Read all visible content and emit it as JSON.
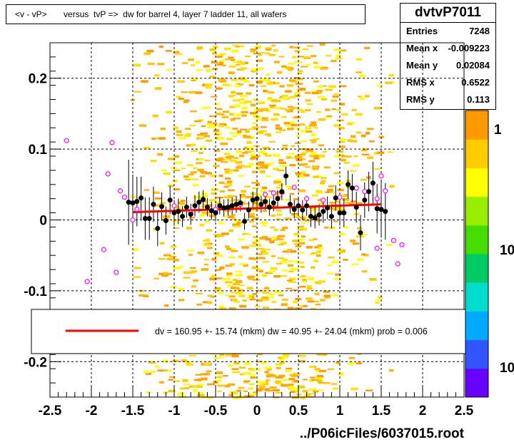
{
  "title": "<v - vP>       versus  tvP =>  dw for barrel 4, layer 7 ladder 11, all wafers",
  "stats": {
    "name": "dvtvP7011",
    "rows": [
      {
        "label": "Entries",
        "value": "7248"
      },
      {
        "label": "Mean x",
        "value": "-0.009223"
      },
      {
        "label": "Mean y",
        "value": "0.02084"
      },
      {
        "label": "RMS x",
        "value": "0.6522"
      },
      {
        "label": "RMS y",
        "value": "0.113"
      }
    ]
  },
  "footer": "../P06icFiles/6037015.root",
  "legend": {
    "text": "dv =  160.95 +- 15.74 (mkm) dw =   40.95 +- 24.04 (mkm) prob = 0.006",
    "line_color": "#ff0000"
  },
  "colors": {
    "profile_marker": "#000000",
    "open_marker": "#ff00ff",
    "fit_line": "#ff0000"
  },
  "palette_labels": [
    "1",
    "10",
    "10"
  ],
  "chart_data": {
    "type": "scatter",
    "xlim": [
      -2.5,
      2.5
    ],
    "ylim": [
      -0.25,
      0.25
    ],
    "x_ticks": [
      -2.5,
      -2,
      -1.5,
      -1,
      -0.5,
      0,
      0.5,
      1,
      1.5,
      2,
      2.5
    ],
    "x_tick_labels": [
      "-2.5",
      "-2",
      "-1.5",
      "-1",
      "-0.5",
      "0",
      "0.5",
      "1",
      "1.5",
      "2",
      "2.5"
    ],
    "y_ticks": [
      -0.2,
      -0.1,
      0,
      0.1,
      0.2
    ],
    "y_tick_labels": [
      "-0.2",
      "-0.1",
      "0",
      "0.1",
      "0.2"
    ],
    "grid": true,
    "fit_line": {
      "x": [
        -1.5,
        1.5
      ],
      "y": [
        0.011,
        0.022
      ]
    },
    "profile": [
      {
        "x": -1.55,
        "y": 0.025,
        "e": 0.06
      },
      {
        "x": -1.5,
        "y": 0.024,
        "e": 0.04
      },
      {
        "x": -1.45,
        "y": 0.026,
        "e": 0.035
      },
      {
        "x": -1.4,
        "y": 0.031,
        "e": 0.03
      },
      {
        "x": -1.35,
        "y": 0.002,
        "e": 0.03
      },
      {
        "x": -1.3,
        "y": 0.002,
        "e": 0.03
      },
      {
        "x": -1.25,
        "y": 0.022,
        "e": 0.025
      },
      {
        "x": -1.2,
        "y": -0.012,
        "e": 0.025
      },
      {
        "x": -1.15,
        "y": 0.019,
        "e": 0.02
      },
      {
        "x": -1.1,
        "y": -0.001,
        "e": 0.02
      },
      {
        "x": -1.05,
        "y": 0.028,
        "e": 0.02
      },
      {
        "x": -1.0,
        "y": 0.01,
        "e": 0.018
      },
      {
        "x": -0.95,
        "y": 0.012,
        "e": 0.018
      },
      {
        "x": -0.9,
        "y": 0.005,
        "e": 0.015
      },
      {
        "x": -0.85,
        "y": 0.018,
        "e": 0.015
      },
      {
        "x": -0.8,
        "y": 0.008,
        "e": 0.015
      },
      {
        "x": -0.75,
        "y": 0.02,
        "e": 0.015
      },
      {
        "x": -0.7,
        "y": 0.025,
        "e": 0.015
      },
      {
        "x": -0.65,
        "y": 0.029,
        "e": 0.013
      },
      {
        "x": -0.6,
        "y": 0.018,
        "e": 0.013
      },
      {
        "x": -0.55,
        "y": 0.013,
        "e": 0.013
      },
      {
        "x": -0.5,
        "y": 0.01,
        "e": 0.012
      },
      {
        "x": -0.45,
        "y": 0.02,
        "e": 0.012
      },
      {
        "x": -0.4,
        "y": 0.017,
        "e": 0.012
      },
      {
        "x": -0.35,
        "y": 0.018,
        "e": 0.012
      },
      {
        "x": -0.3,
        "y": 0.02,
        "e": 0.012
      },
      {
        "x": -0.25,
        "y": 0.022,
        "e": 0.012
      },
      {
        "x": -0.2,
        "y": 0.024,
        "e": 0.012
      },
      {
        "x": -0.15,
        "y": -0.002,
        "e": 0.012
      },
      {
        "x": -0.1,
        "y": 0.014,
        "e": 0.012
      },
      {
        "x": -0.05,
        "y": 0.028,
        "e": 0.012
      },
      {
        "x": 0.0,
        "y": 0.03,
        "e": 0.012
      },
      {
        "x": 0.05,
        "y": 0.022,
        "e": 0.012
      },
      {
        "x": 0.1,
        "y": 0.026,
        "e": 0.012
      },
      {
        "x": 0.15,
        "y": 0.018,
        "e": 0.012
      },
      {
        "x": 0.2,
        "y": 0.024,
        "e": 0.012
      },
      {
        "x": 0.25,
        "y": 0.03,
        "e": 0.012
      },
      {
        "x": 0.3,
        "y": 0.04,
        "e": 0.012
      },
      {
        "x": 0.35,
        "y": 0.062,
        "e": 0.013
      },
      {
        "x": 0.4,
        "y": 0.022,
        "e": 0.013
      },
      {
        "x": 0.45,
        "y": 0.015,
        "e": 0.013
      },
      {
        "x": 0.5,
        "y": 0.02,
        "e": 0.013
      },
      {
        "x": 0.55,
        "y": 0.014,
        "e": 0.014
      },
      {
        "x": 0.6,
        "y": 0.02,
        "e": 0.014
      },
      {
        "x": 0.65,
        "y": 0.005,
        "e": 0.015
      },
      {
        "x": 0.7,
        "y": 0.003,
        "e": 0.015
      },
      {
        "x": 0.75,
        "y": 0.007,
        "e": 0.015
      },
      {
        "x": 0.8,
        "y": 0.012,
        "e": 0.016
      },
      {
        "x": 0.85,
        "y": 0.017,
        "e": 0.016
      },
      {
        "x": 0.9,
        "y": 0.005,
        "e": 0.017
      },
      {
        "x": 0.95,
        "y": 0.031,
        "e": 0.018
      },
      {
        "x": 1.0,
        "y": 0.01,
        "e": 0.018
      },
      {
        "x": 1.05,
        "y": 0.01,
        "e": 0.02
      },
      {
        "x": 1.1,
        "y": 0.05,
        "e": 0.02
      },
      {
        "x": 1.15,
        "y": 0.045,
        "e": 0.02
      },
      {
        "x": 1.2,
        "y": 0.018,
        "e": 0.022
      },
      {
        "x": 1.25,
        "y": -0.018,
        "e": 0.025
      },
      {
        "x": 1.3,
        "y": 0.028,
        "e": 0.025
      },
      {
        "x": 1.35,
        "y": 0.04,
        "e": 0.028
      },
      {
        "x": 1.4,
        "y": 0.052,
        "e": 0.03
      },
      {
        "x": 1.45,
        "y": 0.016,
        "e": 0.035
      },
      {
        "x": 1.5,
        "y": 0.015,
        "e": 0.04
      },
      {
        "x": 1.55,
        "y": 0.012,
        "e": 0.04
      }
    ],
    "open_points": [
      {
        "x": -2.3,
        "y": 0.112
      },
      {
        "x": -2.05,
        "y": -0.087
      },
      {
        "x": -1.85,
        "y": -0.042
      },
      {
        "x": -1.8,
        "y": 0.065
      },
      {
        "x": -1.75,
        "y": 0.109
      },
      {
        "x": -1.7,
        "y": -0.074
      },
      {
        "x": -1.65,
        "y": 0.041
      },
      {
        "x": -1.6,
        "y": 0.032
      },
      {
        "x": -1.5,
        "y": 0.0
      },
      {
        "x": -1.45,
        "y": 0.015
      },
      {
        "x": -1.0,
        "y": 0.02
      },
      {
        "x": -0.8,
        "y": 0.01
      },
      {
        "x": -0.5,
        "y": 0.015
      },
      {
        "x": -0.2,
        "y": 0.022
      },
      {
        "x": 0.0,
        "y": 0.03
      },
      {
        "x": 0.1,
        "y": 0.036
      },
      {
        "x": 0.2,
        "y": 0.038
      },
      {
        "x": 0.3,
        "y": 0.039
      },
      {
        "x": 0.45,
        "y": 0.046
      },
      {
        "x": 0.6,
        "y": 0.03
      },
      {
        "x": 0.8,
        "y": 0.028
      },
      {
        "x": 1.0,
        "y": 0.032
      },
      {
        "x": 1.2,
        "y": 0.045
      },
      {
        "x": 1.3,
        "y": 0.04
      },
      {
        "x": 1.45,
        "y": 0.03
      },
      {
        "x": 1.5,
        "y": 0.062
      },
      {
        "x": 1.55,
        "y": 0.041
      },
      {
        "x": 1.65,
        "y": -0.029
      },
      {
        "x": 1.7,
        "y": -0.062
      },
      {
        "x": 1.75,
        "y": -0.035
      },
      {
        "x": 1.45,
        "y": -0.04
      }
    ]
  }
}
